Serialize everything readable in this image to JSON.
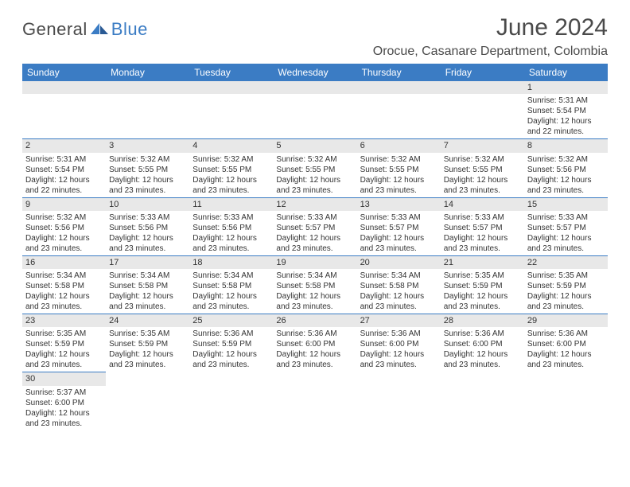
{
  "brand": {
    "part1": "General",
    "part2": "Blue"
  },
  "title": "June 2024",
  "location": "Orocue, Casanare Department, Colombia",
  "colors": {
    "header_bg": "#3b7cc4",
    "header_fg": "#ffffff",
    "daynum_bg": "#e8e8e8",
    "rule": "#3b7cc4",
    "brand_gray": "#4a4a4a",
    "brand_blue": "#3b7cc4"
  },
  "day_headers": [
    "Sunday",
    "Monday",
    "Tuesday",
    "Wednesday",
    "Thursday",
    "Friday",
    "Saturday"
  ],
  "weeks": [
    [
      null,
      null,
      null,
      null,
      null,
      null,
      {
        "n": "1",
        "sunrise": "Sunrise: 5:31 AM",
        "sunset": "Sunset: 5:54 PM",
        "day1": "Daylight: 12 hours",
        "day2": "and 22 minutes."
      }
    ],
    [
      {
        "n": "2",
        "sunrise": "Sunrise: 5:31 AM",
        "sunset": "Sunset: 5:54 PM",
        "day1": "Daylight: 12 hours",
        "day2": "and 22 minutes."
      },
      {
        "n": "3",
        "sunrise": "Sunrise: 5:32 AM",
        "sunset": "Sunset: 5:55 PM",
        "day1": "Daylight: 12 hours",
        "day2": "and 23 minutes."
      },
      {
        "n": "4",
        "sunrise": "Sunrise: 5:32 AM",
        "sunset": "Sunset: 5:55 PM",
        "day1": "Daylight: 12 hours",
        "day2": "and 23 minutes."
      },
      {
        "n": "5",
        "sunrise": "Sunrise: 5:32 AM",
        "sunset": "Sunset: 5:55 PM",
        "day1": "Daylight: 12 hours",
        "day2": "and 23 minutes."
      },
      {
        "n": "6",
        "sunrise": "Sunrise: 5:32 AM",
        "sunset": "Sunset: 5:55 PM",
        "day1": "Daylight: 12 hours",
        "day2": "and 23 minutes."
      },
      {
        "n": "7",
        "sunrise": "Sunrise: 5:32 AM",
        "sunset": "Sunset: 5:55 PM",
        "day1": "Daylight: 12 hours",
        "day2": "and 23 minutes."
      },
      {
        "n": "8",
        "sunrise": "Sunrise: 5:32 AM",
        "sunset": "Sunset: 5:56 PM",
        "day1": "Daylight: 12 hours",
        "day2": "and 23 minutes."
      }
    ],
    [
      {
        "n": "9",
        "sunrise": "Sunrise: 5:32 AM",
        "sunset": "Sunset: 5:56 PM",
        "day1": "Daylight: 12 hours",
        "day2": "and 23 minutes."
      },
      {
        "n": "10",
        "sunrise": "Sunrise: 5:33 AM",
        "sunset": "Sunset: 5:56 PM",
        "day1": "Daylight: 12 hours",
        "day2": "and 23 minutes."
      },
      {
        "n": "11",
        "sunrise": "Sunrise: 5:33 AM",
        "sunset": "Sunset: 5:56 PM",
        "day1": "Daylight: 12 hours",
        "day2": "and 23 minutes."
      },
      {
        "n": "12",
        "sunrise": "Sunrise: 5:33 AM",
        "sunset": "Sunset: 5:57 PM",
        "day1": "Daylight: 12 hours",
        "day2": "and 23 minutes."
      },
      {
        "n": "13",
        "sunrise": "Sunrise: 5:33 AM",
        "sunset": "Sunset: 5:57 PM",
        "day1": "Daylight: 12 hours",
        "day2": "and 23 minutes."
      },
      {
        "n": "14",
        "sunrise": "Sunrise: 5:33 AM",
        "sunset": "Sunset: 5:57 PM",
        "day1": "Daylight: 12 hours",
        "day2": "and 23 minutes."
      },
      {
        "n": "15",
        "sunrise": "Sunrise: 5:33 AM",
        "sunset": "Sunset: 5:57 PM",
        "day1": "Daylight: 12 hours",
        "day2": "and 23 minutes."
      }
    ],
    [
      {
        "n": "16",
        "sunrise": "Sunrise: 5:34 AM",
        "sunset": "Sunset: 5:58 PM",
        "day1": "Daylight: 12 hours",
        "day2": "and 23 minutes."
      },
      {
        "n": "17",
        "sunrise": "Sunrise: 5:34 AM",
        "sunset": "Sunset: 5:58 PM",
        "day1": "Daylight: 12 hours",
        "day2": "and 23 minutes."
      },
      {
        "n": "18",
        "sunrise": "Sunrise: 5:34 AM",
        "sunset": "Sunset: 5:58 PM",
        "day1": "Daylight: 12 hours",
        "day2": "and 23 minutes."
      },
      {
        "n": "19",
        "sunrise": "Sunrise: 5:34 AM",
        "sunset": "Sunset: 5:58 PM",
        "day1": "Daylight: 12 hours",
        "day2": "and 23 minutes."
      },
      {
        "n": "20",
        "sunrise": "Sunrise: 5:34 AM",
        "sunset": "Sunset: 5:58 PM",
        "day1": "Daylight: 12 hours",
        "day2": "and 23 minutes."
      },
      {
        "n": "21",
        "sunrise": "Sunrise: 5:35 AM",
        "sunset": "Sunset: 5:59 PM",
        "day1": "Daylight: 12 hours",
        "day2": "and 23 minutes."
      },
      {
        "n": "22",
        "sunrise": "Sunrise: 5:35 AM",
        "sunset": "Sunset: 5:59 PM",
        "day1": "Daylight: 12 hours",
        "day2": "and 23 minutes."
      }
    ],
    [
      {
        "n": "23",
        "sunrise": "Sunrise: 5:35 AM",
        "sunset": "Sunset: 5:59 PM",
        "day1": "Daylight: 12 hours",
        "day2": "and 23 minutes."
      },
      {
        "n": "24",
        "sunrise": "Sunrise: 5:35 AM",
        "sunset": "Sunset: 5:59 PM",
        "day1": "Daylight: 12 hours",
        "day2": "and 23 minutes."
      },
      {
        "n": "25",
        "sunrise": "Sunrise: 5:36 AM",
        "sunset": "Sunset: 5:59 PM",
        "day1": "Daylight: 12 hours",
        "day2": "and 23 minutes."
      },
      {
        "n": "26",
        "sunrise": "Sunrise: 5:36 AM",
        "sunset": "Sunset: 6:00 PM",
        "day1": "Daylight: 12 hours",
        "day2": "and 23 minutes."
      },
      {
        "n": "27",
        "sunrise": "Sunrise: 5:36 AM",
        "sunset": "Sunset: 6:00 PM",
        "day1": "Daylight: 12 hours",
        "day2": "and 23 minutes."
      },
      {
        "n": "28",
        "sunrise": "Sunrise: 5:36 AM",
        "sunset": "Sunset: 6:00 PM",
        "day1": "Daylight: 12 hours",
        "day2": "and 23 minutes."
      },
      {
        "n": "29",
        "sunrise": "Sunrise: 5:36 AM",
        "sunset": "Sunset: 6:00 PM",
        "day1": "Daylight: 12 hours",
        "day2": "and 23 minutes."
      }
    ],
    [
      {
        "n": "30",
        "sunrise": "Sunrise: 5:37 AM",
        "sunset": "Sunset: 6:00 PM",
        "day1": "Daylight: 12 hours",
        "day2": "and 23 minutes."
      },
      null,
      null,
      null,
      null,
      null,
      null
    ]
  ]
}
